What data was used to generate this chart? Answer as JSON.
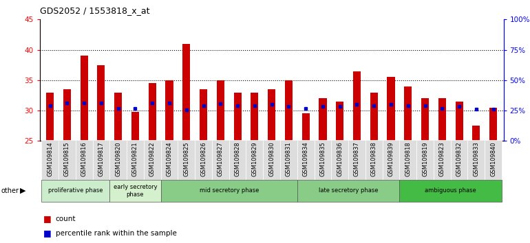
{
  "title": "GDS2052 / 1553818_x_at",
  "samples": [
    "GSM109814",
    "GSM109815",
    "GSM109816",
    "GSM109817",
    "GSM109820",
    "GSM109821",
    "GSM109822",
    "GSM109824",
    "GSM109825",
    "GSM109826",
    "GSM109827",
    "GSM109828",
    "GSM109829",
    "GSM109830",
    "GSM109831",
    "GSM109834",
    "GSM109835",
    "GSM109836",
    "GSM109837",
    "GSM109838",
    "GSM109839",
    "GSM109818",
    "GSM109819",
    "GSM109823",
    "GSM109832",
    "GSM109833",
    "GSM109840"
  ],
  "red_values": [
    33.0,
    33.5,
    39.0,
    37.5,
    33.0,
    29.8,
    34.5,
    35.0,
    41.0,
    33.5,
    35.0,
    33.0,
    33.0,
    33.5,
    35.0,
    29.5,
    32.0,
    31.5,
    36.5,
    33.0,
    35.5,
    34.0,
    32.0,
    32.0,
    31.5,
    27.5,
    30.5
  ],
  "blue_values": [
    30.8,
    31.2,
    31.3,
    31.2,
    30.3,
    30.3,
    31.2,
    31.2,
    30.1,
    30.8,
    31.1,
    30.8,
    30.8,
    31.0,
    30.7,
    30.3,
    30.7,
    30.7,
    31.0,
    30.8,
    31.0,
    30.8,
    30.8,
    30.3,
    30.7,
    30.2,
    30.2
  ],
  "y_min": 25,
  "y_max": 45,
  "y_ticks": [
    25,
    30,
    35,
    40,
    45
  ],
  "y2_ticks_vals": [
    0,
    25,
    50,
    75,
    100
  ],
  "y2_labels": [
    "0%",
    "25%",
    "50%",
    "75%",
    "100%"
  ],
  "group_defs": [
    {
      "label": "proliferative phase",
      "start": 0,
      "end": 4,
      "color": "#ccedcc"
    },
    {
      "label": "early secretory\nphase",
      "start": 4,
      "end": 7,
      "color": "#d4f0cc"
    },
    {
      "label": "mid secretory phase",
      "start": 7,
      "end": 15,
      "color": "#88cc88"
    },
    {
      "label": "late secretory phase",
      "start": 15,
      "end": 21,
      "color": "#88cc88"
    },
    {
      "label": "ambiguous phase",
      "start": 21,
      "end": 27,
      "color": "#44bb44"
    }
  ],
  "red_color": "#cc0000",
  "blue_color": "#0000cc",
  "bar_width": 0.45,
  "grid_dotted_at": [
    30,
    35,
    40
  ],
  "xticklabel_fontsize": 6.0,
  "ytick_fontsize": 7.5
}
